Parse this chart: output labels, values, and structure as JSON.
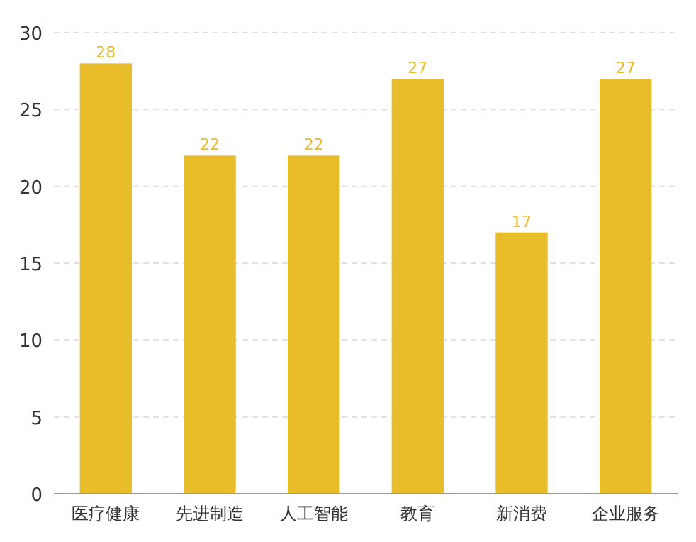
{
  "chart_data": {
    "type": "bar",
    "categories": [
      "医疗健康",
      "先进制造",
      "人工智能",
      "教育",
      "新消费",
      "企业服务"
    ],
    "values": [
      28,
      22,
      22,
      27,
      17,
      27
    ],
    "color": "#e9bc2b",
    "ylim": [
      0,
      30
    ],
    "yticks": [
      0,
      5,
      10,
      15,
      20,
      25,
      30
    ],
    "grid": "y",
    "data_labels": true
  }
}
